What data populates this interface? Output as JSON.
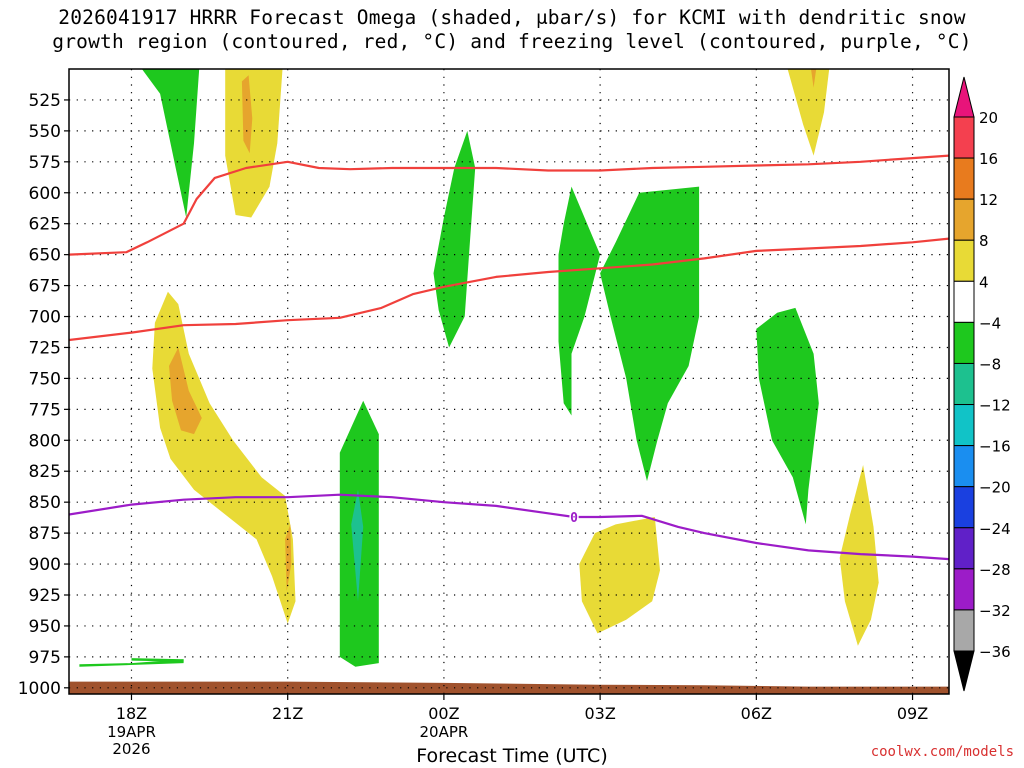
{
  "title": {
    "line1": "2026041917 HRRR Forecast Omega (shaded, μbar/s) for KCMI with dendritic snow",
    "line2": "growth region (contoured, red, °C) and freezing level (contoured, purple, °C)"
  },
  "credit": "coolwx.com/models",
  "chart_data": {
    "type": "time-height cross-section",
    "xlabel": "Forecast Time (UTC)",
    "x_range_hours": [
      -0.2,
      16.7
    ],
    "x_ticks": [
      {
        "hour": 1,
        "label": "18Z",
        "sub": [
          "19APR",
          "2026"
        ]
      },
      {
        "hour": 4,
        "label": "21Z",
        "sub": []
      },
      {
        "hour": 7,
        "label": "00Z",
        "sub": [
          "20APR"
        ]
      },
      {
        "hour": 10,
        "label": "03Z",
        "sub": []
      },
      {
        "hour": 13,
        "label": "06Z",
        "sub": []
      },
      {
        "hour": 16,
        "label": "09Z",
        "sub": []
      }
    ],
    "y_axis": "pressure (hPa)",
    "y_range": [
      500,
      1005
    ],
    "y_ticks": [
      525,
      550,
      575,
      600,
      625,
      650,
      675,
      700,
      725,
      750,
      775,
      800,
      825,
      850,
      875,
      900,
      925,
      950,
      975,
      1000
    ],
    "grid": true,
    "colorbar": {
      "labels": [
        20,
        16,
        12,
        8,
        4,
        -4,
        -8,
        -12,
        -16,
        -20,
        -24,
        -28,
        -32,
        -36
      ],
      "colors": [
        "#f4404f",
        "#e87b1e",
        "#e6a52d",
        "#e8da36",
        "#ffffff",
        "#1ec81e",
        "#1dc18f",
        "#11c3c7",
        "#1a8ef0",
        "#1a40e0",
        "#6020c8",
        "#9c1cc8",
        "#a8a8a8"
      ],
      "top_arrow_color": "#e8147a",
      "bottom_arrow_color": "#000000"
    },
    "shaded_regions": [
      {
        "color": "#1ec81e",
        "points": [
          [
            1.2,
            500
          ],
          [
            2.3,
            500
          ],
          [
            2.2,
            560
          ],
          [
            2.05,
            620
          ],
          [
            1.85,
            580
          ],
          [
            1.55,
            520
          ]
        ]
      },
      {
        "color": "#e8da36",
        "points": [
          [
            2.8,
            500
          ],
          [
            3.9,
            500
          ],
          [
            3.8,
            560
          ],
          [
            3.65,
            595
          ],
          [
            3.3,
            620
          ],
          [
            3.0,
            618
          ],
          [
            2.8,
            570
          ]
        ]
      },
      {
        "color": "#e6a52d",
        "points": [
          [
            3.12,
            510
          ],
          [
            3.25,
            505
          ],
          [
            3.32,
            540
          ],
          [
            3.27,
            568
          ],
          [
            3.15,
            558
          ]
        ]
      },
      {
        "color": "#e8da36",
        "points": [
          [
            13.6,
            500
          ],
          [
            14.4,
            500
          ],
          [
            14.3,
            535
          ],
          [
            14.1,
            570
          ],
          [
            13.9,
            545
          ]
        ]
      },
      {
        "color": "#e6a52d",
        "points": [
          [
            14.05,
            500
          ],
          [
            14.15,
            500
          ],
          [
            14.1,
            515
          ]
        ]
      },
      {
        "color": "#e8da36",
        "points": [
          [
            1.4,
            742
          ],
          [
            1.45,
            705
          ],
          [
            1.7,
            680
          ],
          [
            1.9,
            690
          ],
          [
            2.1,
            730
          ],
          [
            2.5,
            770
          ],
          [
            2.95,
            800
          ],
          [
            3.5,
            830
          ],
          [
            3.95,
            845
          ],
          [
            4.1,
            880
          ],
          [
            4.15,
            930
          ],
          [
            4.0,
            948
          ],
          [
            3.7,
            910
          ],
          [
            3.4,
            880
          ],
          [
            2.8,
            860
          ],
          [
            2.2,
            840
          ],
          [
            1.75,
            815
          ],
          [
            1.55,
            790
          ]
        ]
      },
      {
        "color": "#e6a52d",
        "points": [
          [
            1.72,
            740
          ],
          [
            1.9,
            725
          ],
          [
            2.1,
            760
          ],
          [
            2.35,
            782
          ],
          [
            2.2,
            795
          ],
          [
            1.95,
            792
          ],
          [
            1.78,
            768
          ]
        ]
      },
      {
        "color": "#e6a52d",
        "points": [
          [
            3.95,
            880
          ],
          [
            4.05,
            868
          ],
          [
            4.07,
            900
          ],
          [
            3.98,
            922
          ]
        ]
      },
      {
        "color": "#1ec81e",
        "points": [
          [
            5.0,
            975
          ],
          [
            5.0,
            810
          ],
          [
            5.45,
            768
          ],
          [
            5.75,
            795
          ],
          [
            5.75,
            980
          ],
          [
            5.3,
            983
          ]
        ]
      },
      {
        "color": "#1dc18f",
        "points": [
          [
            5.22,
            868
          ],
          [
            5.35,
            840
          ],
          [
            5.45,
            870
          ],
          [
            5.35,
            930
          ]
        ]
      },
      {
        "color": "#1ec81e",
        "points": [
          [
            6.8,
            665
          ],
          [
            7.0,
            620
          ],
          [
            7.2,
            580
          ],
          [
            7.45,
            550
          ],
          [
            7.6,
            580
          ],
          [
            7.5,
            640
          ],
          [
            7.4,
            700
          ],
          [
            7.1,
            725
          ],
          [
            6.9,
            695
          ]
        ]
      },
      {
        "color": "#1ec81e",
        "points": [
          [
            9.2,
            650
          ],
          [
            9.3,
            625
          ],
          [
            9.45,
            595
          ],
          [
            10.0,
            650
          ],
          [
            9.7,
            700
          ],
          [
            9.45,
            730
          ],
          [
            9.45,
            780
          ],
          [
            9.3,
            770
          ],
          [
            9.2,
            720
          ]
        ]
      },
      {
        "color": "#1ec81e",
        "points": [
          [
            10.0,
            665
          ],
          [
            10.3,
            640
          ],
          [
            10.75,
            600
          ],
          [
            11.9,
            595
          ],
          [
            11.9,
            700
          ],
          [
            11.7,
            740
          ],
          [
            11.3,
            770
          ],
          [
            11.1,
            800
          ],
          [
            10.9,
            833
          ],
          [
            10.7,
            800
          ],
          [
            10.5,
            750
          ],
          [
            10.2,
            700
          ]
        ]
      },
      {
        "color": "#1ec81e",
        "points": [
          [
            13.0,
            710
          ],
          [
            13.4,
            697
          ],
          [
            13.75,
            693
          ],
          [
            14.1,
            730
          ],
          [
            14.2,
            770
          ],
          [
            14.0,
            840
          ],
          [
            13.95,
            868
          ],
          [
            13.7,
            830
          ],
          [
            13.3,
            800
          ],
          [
            13.05,
            750
          ]
        ]
      },
      {
        "color": "#e8da36",
        "points": [
          [
            9.6,
            900
          ],
          [
            9.9,
            875
          ],
          [
            10.3,
            868
          ],
          [
            11.05,
            862
          ],
          [
            11.15,
            905
          ],
          [
            11.0,
            930
          ],
          [
            10.5,
            945
          ],
          [
            9.95,
            956
          ],
          [
            9.65,
            930
          ]
        ]
      },
      {
        "color": "#e8da36",
        "points": [
          [
            14.6,
            895
          ],
          [
            14.8,
            860
          ],
          [
            15.05,
            820
          ],
          [
            15.25,
            870
          ],
          [
            15.35,
            915
          ],
          [
            15.2,
            945
          ],
          [
            14.95,
            966
          ],
          [
            14.7,
            930
          ]
        ]
      },
      {
        "color": "#1ec81e",
        "points": [
          [
            0.0,
            983
          ],
          [
            2.0,
            980
          ],
          [
            2.0,
            977
          ],
          [
            1.0,
            980
          ],
          [
            0.0,
            981
          ]
        ]
      },
      {
        "color": "#1ec81e",
        "points": [
          [
            1.0,
            976
          ],
          [
            2.0,
            977
          ],
          [
            2.0,
            979
          ],
          [
            1.0,
            978
          ]
        ]
      }
    ],
    "ground_band": {
      "color": "#a0522d",
      "bottom": 1005,
      "top_points": [
        [
          -0.2,
          995
        ],
        [
          2,
          995
        ],
        [
          4,
          995
        ],
        [
          7,
          996
        ],
        [
          9,
          997
        ],
        [
          10,
          997.5
        ],
        [
          12,
          998
        ],
        [
          14,
          999
        ],
        [
          16.7,
          999
        ]
      ]
    },
    "series": [
      {
        "color": "#f0403c",
        "points": [
          [
            -0.2,
            650
          ],
          [
            0.9,
            648
          ],
          [
            1.3,
            640
          ],
          [
            2,
            625
          ],
          [
            2.25,
            605
          ],
          [
            2.6,
            588
          ],
          [
            3.2,
            580
          ],
          [
            4,
            575
          ],
          [
            4.6,
            580
          ],
          [
            5.2,
            581
          ],
          [
            6,
            580
          ],
          [
            7,
            580
          ],
          [
            8,
            580
          ],
          [
            9,
            582
          ],
          [
            10,
            582
          ],
          [
            11,
            580
          ],
          [
            12,
            579
          ],
          [
            13,
            578
          ],
          [
            14,
            577
          ],
          [
            15,
            575
          ],
          [
            16,
            572
          ],
          [
            16.7,
            570
          ]
        ]
      },
      {
        "color": "#f0403c",
        "points": [
          [
            -0.2,
            719
          ],
          [
            1,
            713
          ],
          [
            2,
            707
          ],
          [
            3,
            706
          ],
          [
            4,
            703
          ],
          [
            5,
            701
          ],
          [
            5.8,
            693
          ],
          [
            6.4,
            682
          ],
          [
            7,
            676
          ],
          [
            8,
            668
          ],
          [
            9,
            664
          ],
          [
            10,
            661
          ],
          [
            11,
            658
          ],
          [
            12,
            653
          ],
          [
            13,
            647
          ],
          [
            14,
            645
          ],
          [
            15,
            643
          ],
          [
            16,
            640
          ],
          [
            16.7,
            637
          ]
        ]
      },
      {
        "color": "#9c1cc8",
        "points": [
          [
            -0.2,
            860
          ],
          [
            1,
            852
          ],
          [
            2,
            848
          ],
          [
            3,
            846
          ],
          [
            4,
            846
          ],
          [
            5,
            844
          ],
          [
            6,
            846
          ],
          [
            7,
            850
          ],
          [
            8,
            853
          ],
          [
            9,
            859
          ],
          [
            9.5,
            862
          ],
          [
            10,
            862
          ],
          [
            10.8,
            861
          ],
          [
            11.5,
            870
          ],
          [
            12,
            875
          ],
          [
            13,
            883
          ],
          [
            14,
            889
          ],
          [
            15,
            892
          ],
          [
            16,
            894
          ],
          [
            16.7,
            896
          ]
        ]
      }
    ],
    "contour_label": {
      "text": "0",
      "hour": 9.5,
      "hpa": 862,
      "color": "#9c1cc8"
    }
  },
  "colors": {
    "dotted_grid": "#000000",
    "axis": "#000000"
  }
}
